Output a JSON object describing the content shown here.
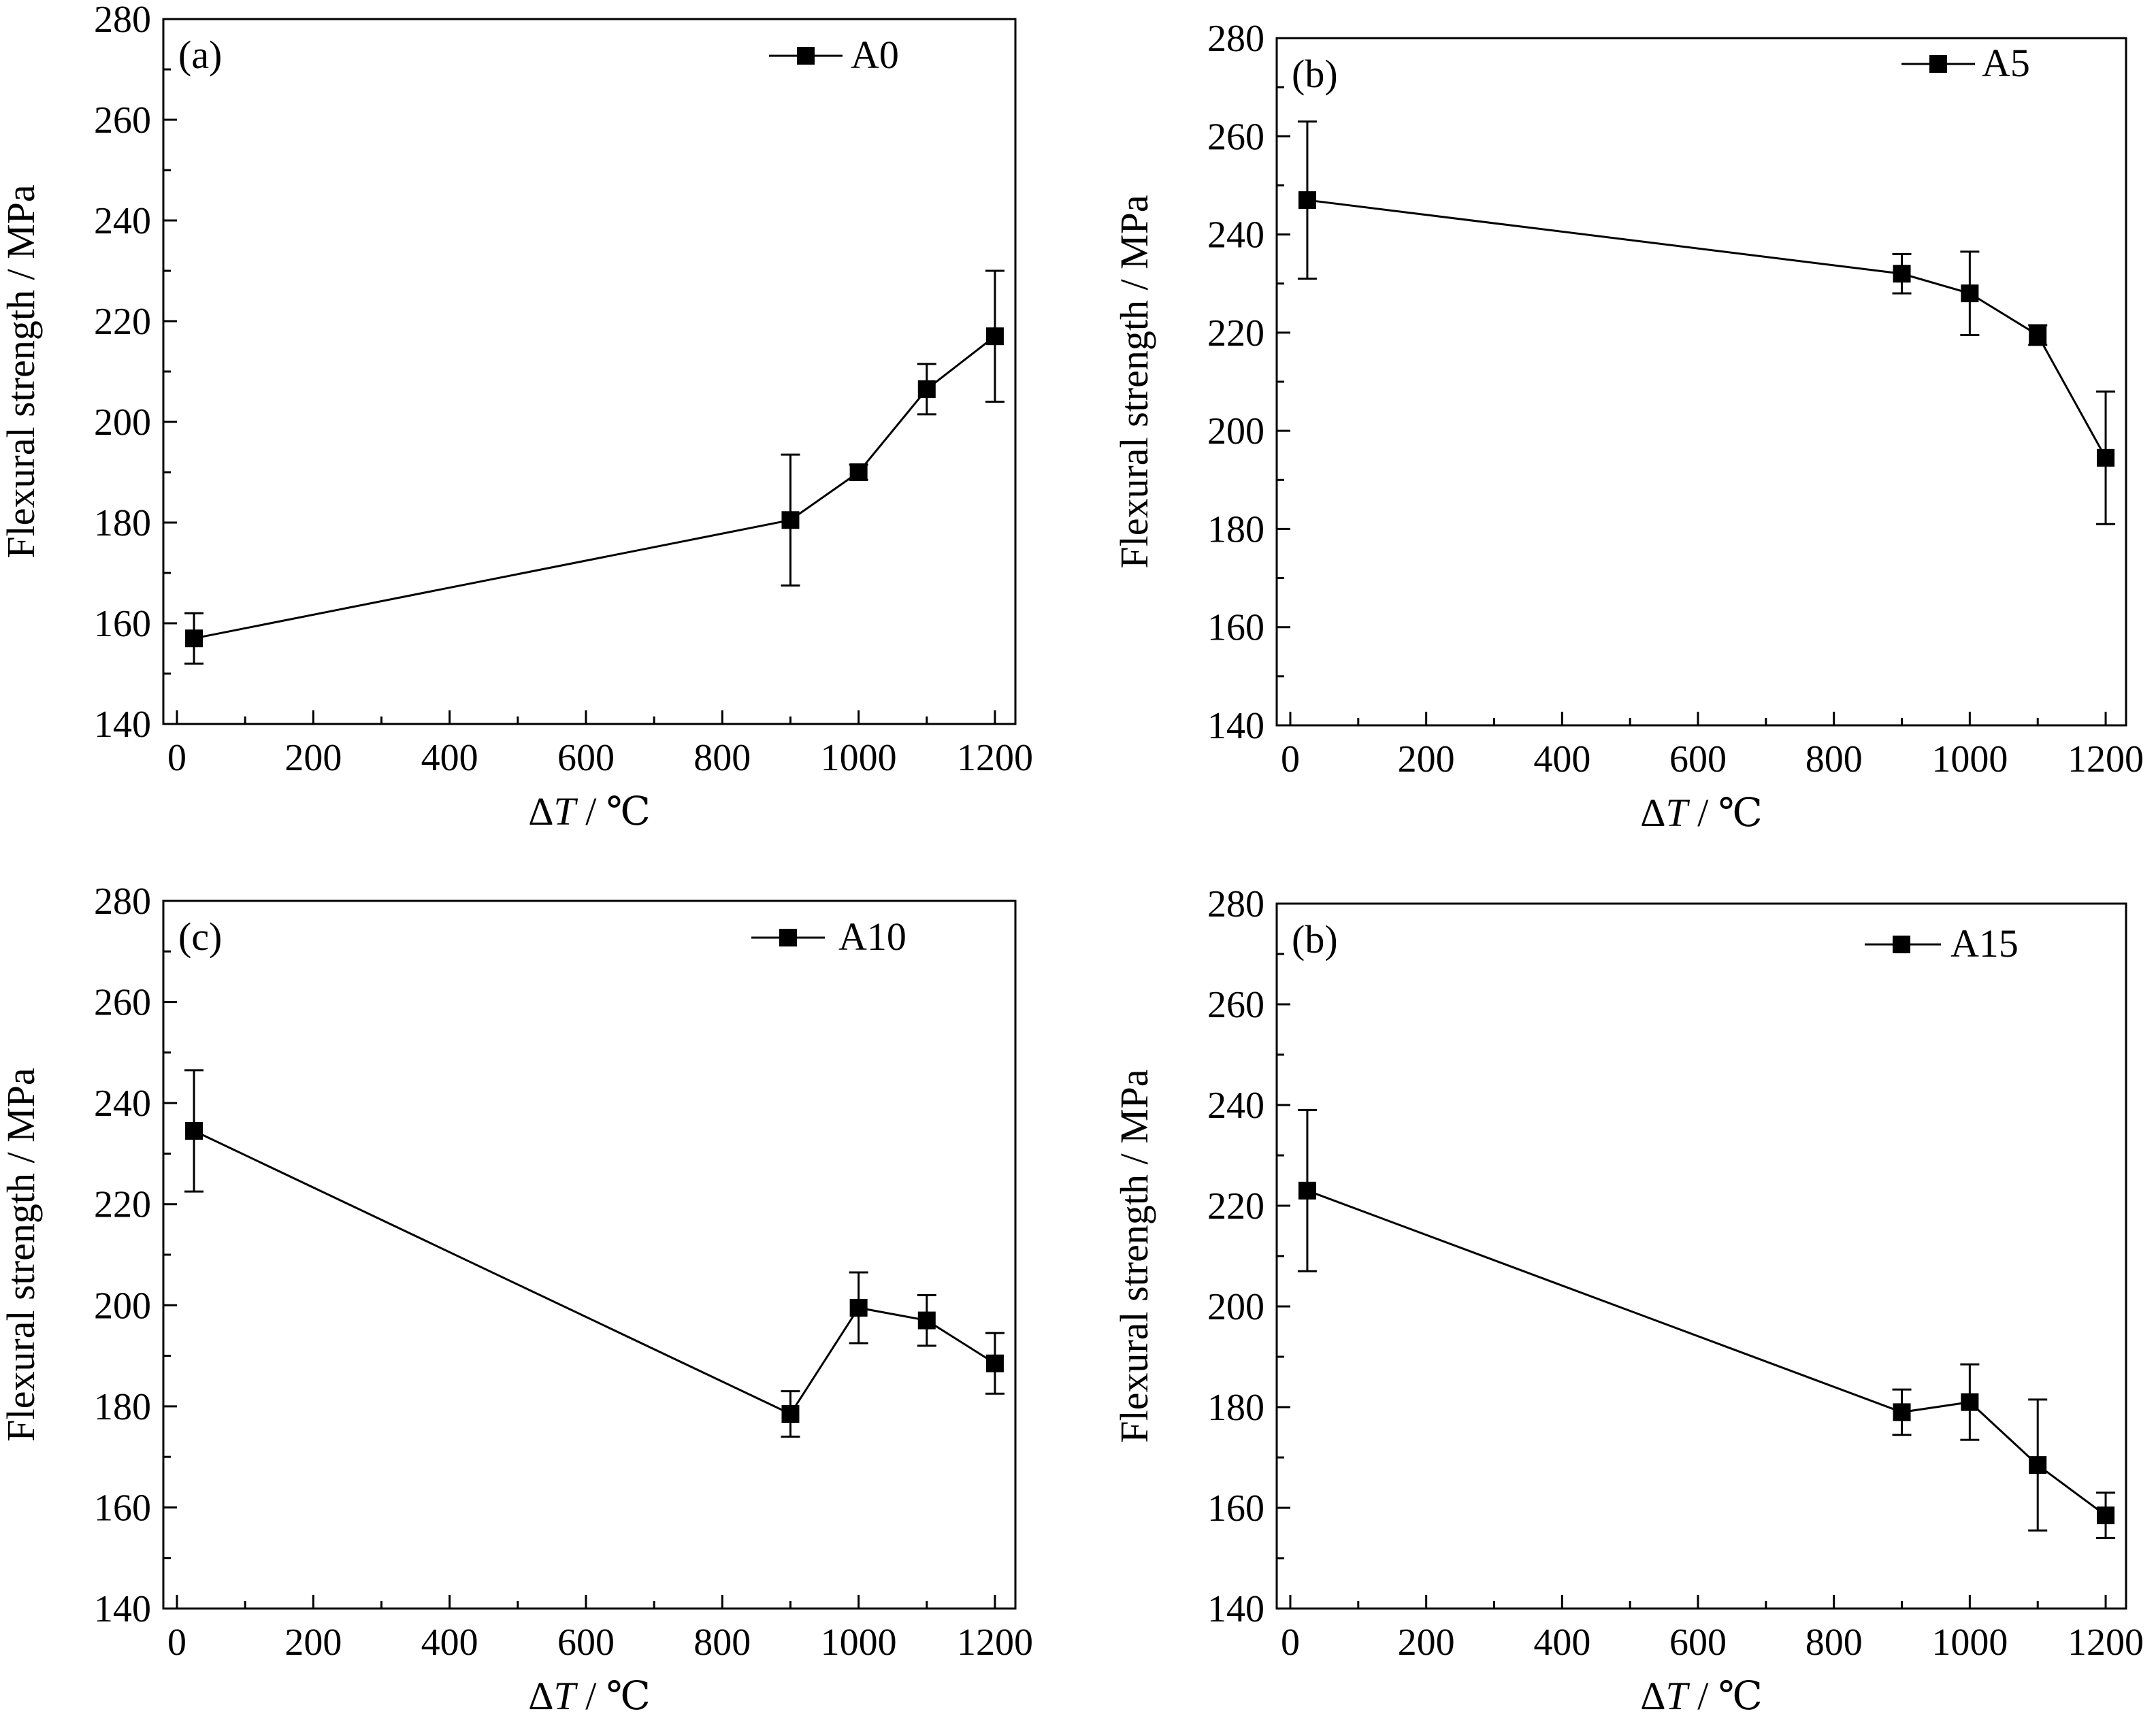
{
  "chart_data": [
    {
      "type": "line",
      "panel_label": "(a)",
      "xlabel": {
        "prefix": "Δ",
        "italic": "T",
        "suffix": " / ℃"
      },
      "ylabel": "Flexural strength / MPa",
      "xlim": [
        -20,
        1230
      ],
      "ylim": [
        140,
        280
      ],
      "xticks": [
        0,
        200,
        400,
        600,
        800,
        1000,
        1200
      ],
      "yticks": [
        140,
        160,
        180,
        200,
        220,
        240,
        260,
        280
      ],
      "legend_position": "top-right",
      "series": [
        {
          "name": "A0",
          "marker": "square",
          "x": [
            25,
            900,
            1000,
            1100,
            1200
          ],
          "y": [
            157,
            180.5,
            190,
            206.5,
            217
          ],
          "err": [
            5,
            13,
            1.5,
            5,
            13
          ]
        }
      ]
    },
    {
      "type": "line",
      "panel_label": "(b)",
      "xlabel": {
        "prefix": "Δ",
        "italic": "T",
        "suffix": " / ℃"
      },
      "ylabel": "Flexural strength / MPa",
      "xlim": [
        -20,
        1230
      ],
      "ylim": [
        140,
        280
      ],
      "xticks": [
        0,
        200,
        400,
        600,
        800,
        1000,
        1200
      ],
      "yticks": [
        140,
        160,
        180,
        200,
        220,
        240,
        260,
        280
      ],
      "legend_position": "top-right",
      "series": [
        {
          "name": "A5",
          "marker": "square",
          "x": [
            25,
            900,
            1000,
            1100,
            1200
          ],
          "y": [
            247,
            232,
            228,
            219.5,
            194.5
          ],
          "err": [
            16,
            4,
            8.5,
            2,
            13.5
          ]
        }
      ]
    },
    {
      "type": "line",
      "panel_label": "(c)",
      "xlabel": {
        "prefix": "Δ",
        "italic": "T",
        "suffix": " / ℃"
      },
      "ylabel": "Flexural strength / MPa",
      "xlim": [
        -20,
        1230
      ],
      "ylim": [
        140,
        280
      ],
      "xticks": [
        0,
        200,
        400,
        600,
        800,
        1000,
        1200
      ],
      "yticks": [
        140,
        160,
        180,
        200,
        220,
        240,
        260,
        280
      ],
      "legend_position": "top-right",
      "series": [
        {
          "name": "A10",
          "marker": "square",
          "x": [
            25,
            900,
            1000,
            1100,
            1200
          ],
          "y": [
            234.5,
            178.5,
            199.5,
            197,
            188.5
          ],
          "err": [
            12,
            4.5,
            7,
            5,
            6
          ]
        }
      ]
    },
    {
      "type": "line",
      "panel_label": "(b)",
      "xlabel": {
        "prefix": "Δ",
        "italic": "T",
        "suffix": " / ℃"
      },
      "ylabel": "Flexural strength / MPa",
      "xlim": [
        -20,
        1230
      ],
      "ylim": [
        140,
        280
      ],
      "xticks": [
        0,
        200,
        400,
        600,
        800,
        1000,
        1200
      ],
      "yticks": [
        140,
        160,
        180,
        200,
        220,
        240,
        260,
        280
      ],
      "legend_position": "top-right",
      "series": [
        {
          "name": "A15",
          "marker": "square",
          "x": [
            25,
            900,
            1000,
            1100,
            1200
          ],
          "y": [
            223,
            179,
            181,
            168.5,
            158.5
          ],
          "err": [
            16,
            4.5,
            7.5,
            13,
            4.5
          ]
        }
      ]
    }
  ]
}
